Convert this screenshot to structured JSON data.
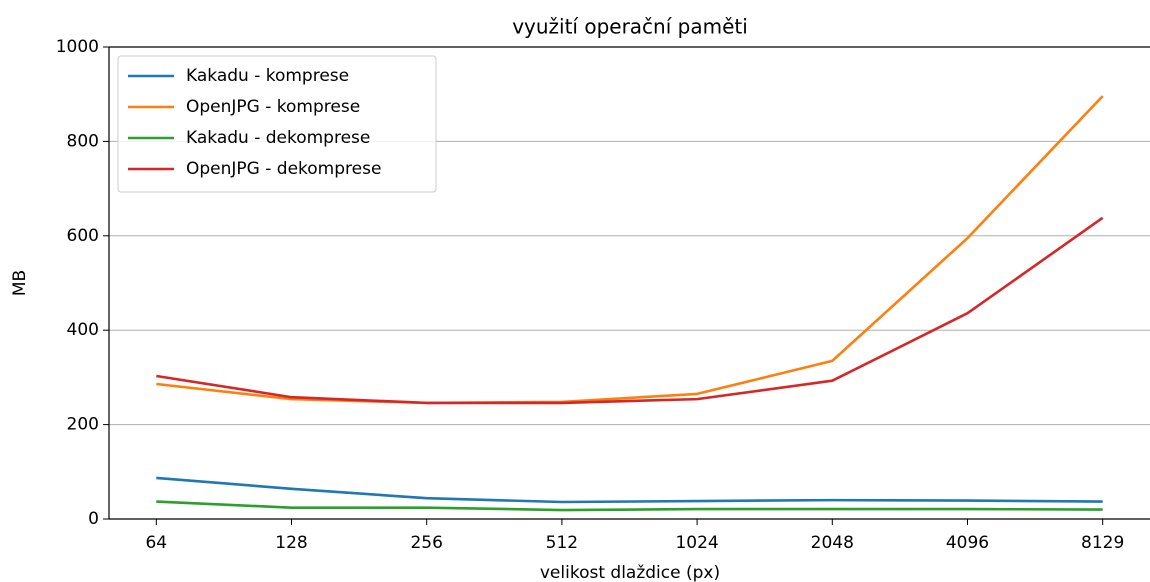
{
  "chart_data": {
    "type": "line",
    "title": "využití operační paměti",
    "x_label": "velikost dlaždice (px)",
    "y_label": "MB",
    "categories": [
      "64",
      "128",
      "256",
      "512",
      "1024",
      "2048",
      "4096",
      "8129"
    ],
    "series": [
      {
        "name": "Kakadu - komprese",
        "color": "#1f77b4",
        "values": [
          87,
          64,
          44,
          36,
          38,
          40,
          39,
          37
        ]
      },
      {
        "name": "OpenJPG - komprese",
        "color": "#ff7f0e",
        "values": [
          286,
          254,
          246,
          248,
          265,
          335,
          595,
          896
        ]
      },
      {
        "name": "Kakadu - dekomprese",
        "color": "#2ca02c",
        "values": [
          37,
          24,
          24,
          19,
          21,
          21,
          21,
          20
        ]
      },
      {
        "name": "OpenJPG - dekomprese",
        "color": "#d62728",
        "values": [
          303,
          258,
          246,
          246,
          254,
          293,
          436,
          638
        ]
      }
    ],
    "ylim": [
      0,
      1000
    ],
    "yticks": [
      0,
      200,
      400,
      600,
      800,
      1000
    ],
    "grid": true,
    "legend": "upper left"
  }
}
